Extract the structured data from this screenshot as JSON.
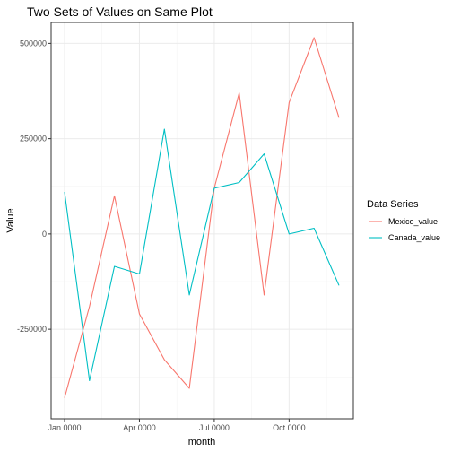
{
  "chart_data": {
    "type": "line",
    "title": "Two Sets of Values on Same Plot",
    "xlabel": "month",
    "ylabel": "Value",
    "x": [
      "Jan 0000",
      "Feb 0000",
      "Mar 0000",
      "Apr 0000",
      "May 0000",
      "Jun 0000",
      "Jul 0000",
      "Aug 0000",
      "Sep 0000",
      "Oct 0000",
      "Nov 0000",
      "Dec 0000"
    ],
    "x_ticks": [
      "Jan 0000",
      "Apr 0000",
      "Jul 0000",
      "Oct 0000"
    ],
    "y_ticks": [
      -250000,
      0,
      250000,
      500000
    ],
    "y_tick_labels": [
      "-250000",
      "0",
      "250000",
      "500000"
    ],
    "ylim": [
      -485000,
      555000
    ],
    "grid": true,
    "legend": {
      "title": "Data Series",
      "position": "right"
    },
    "series": [
      {
        "name": "Mexico_value",
        "color": "#F8766D",
        "values": [
          -430000,
          -190000,
          100000,
          -210000,
          -330000,
          -405000,
          120000,
          370000,
          -160000,
          345000,
          515000,
          305000
        ]
      },
      {
        "name": "Canada_value",
        "color": "#00BFC4",
        "values": [
          110000,
          -385000,
          -85000,
          -105000,
          275000,
          -160000,
          120000,
          135000,
          210000,
          0,
          15000,
          -135000
        ]
      }
    ]
  }
}
